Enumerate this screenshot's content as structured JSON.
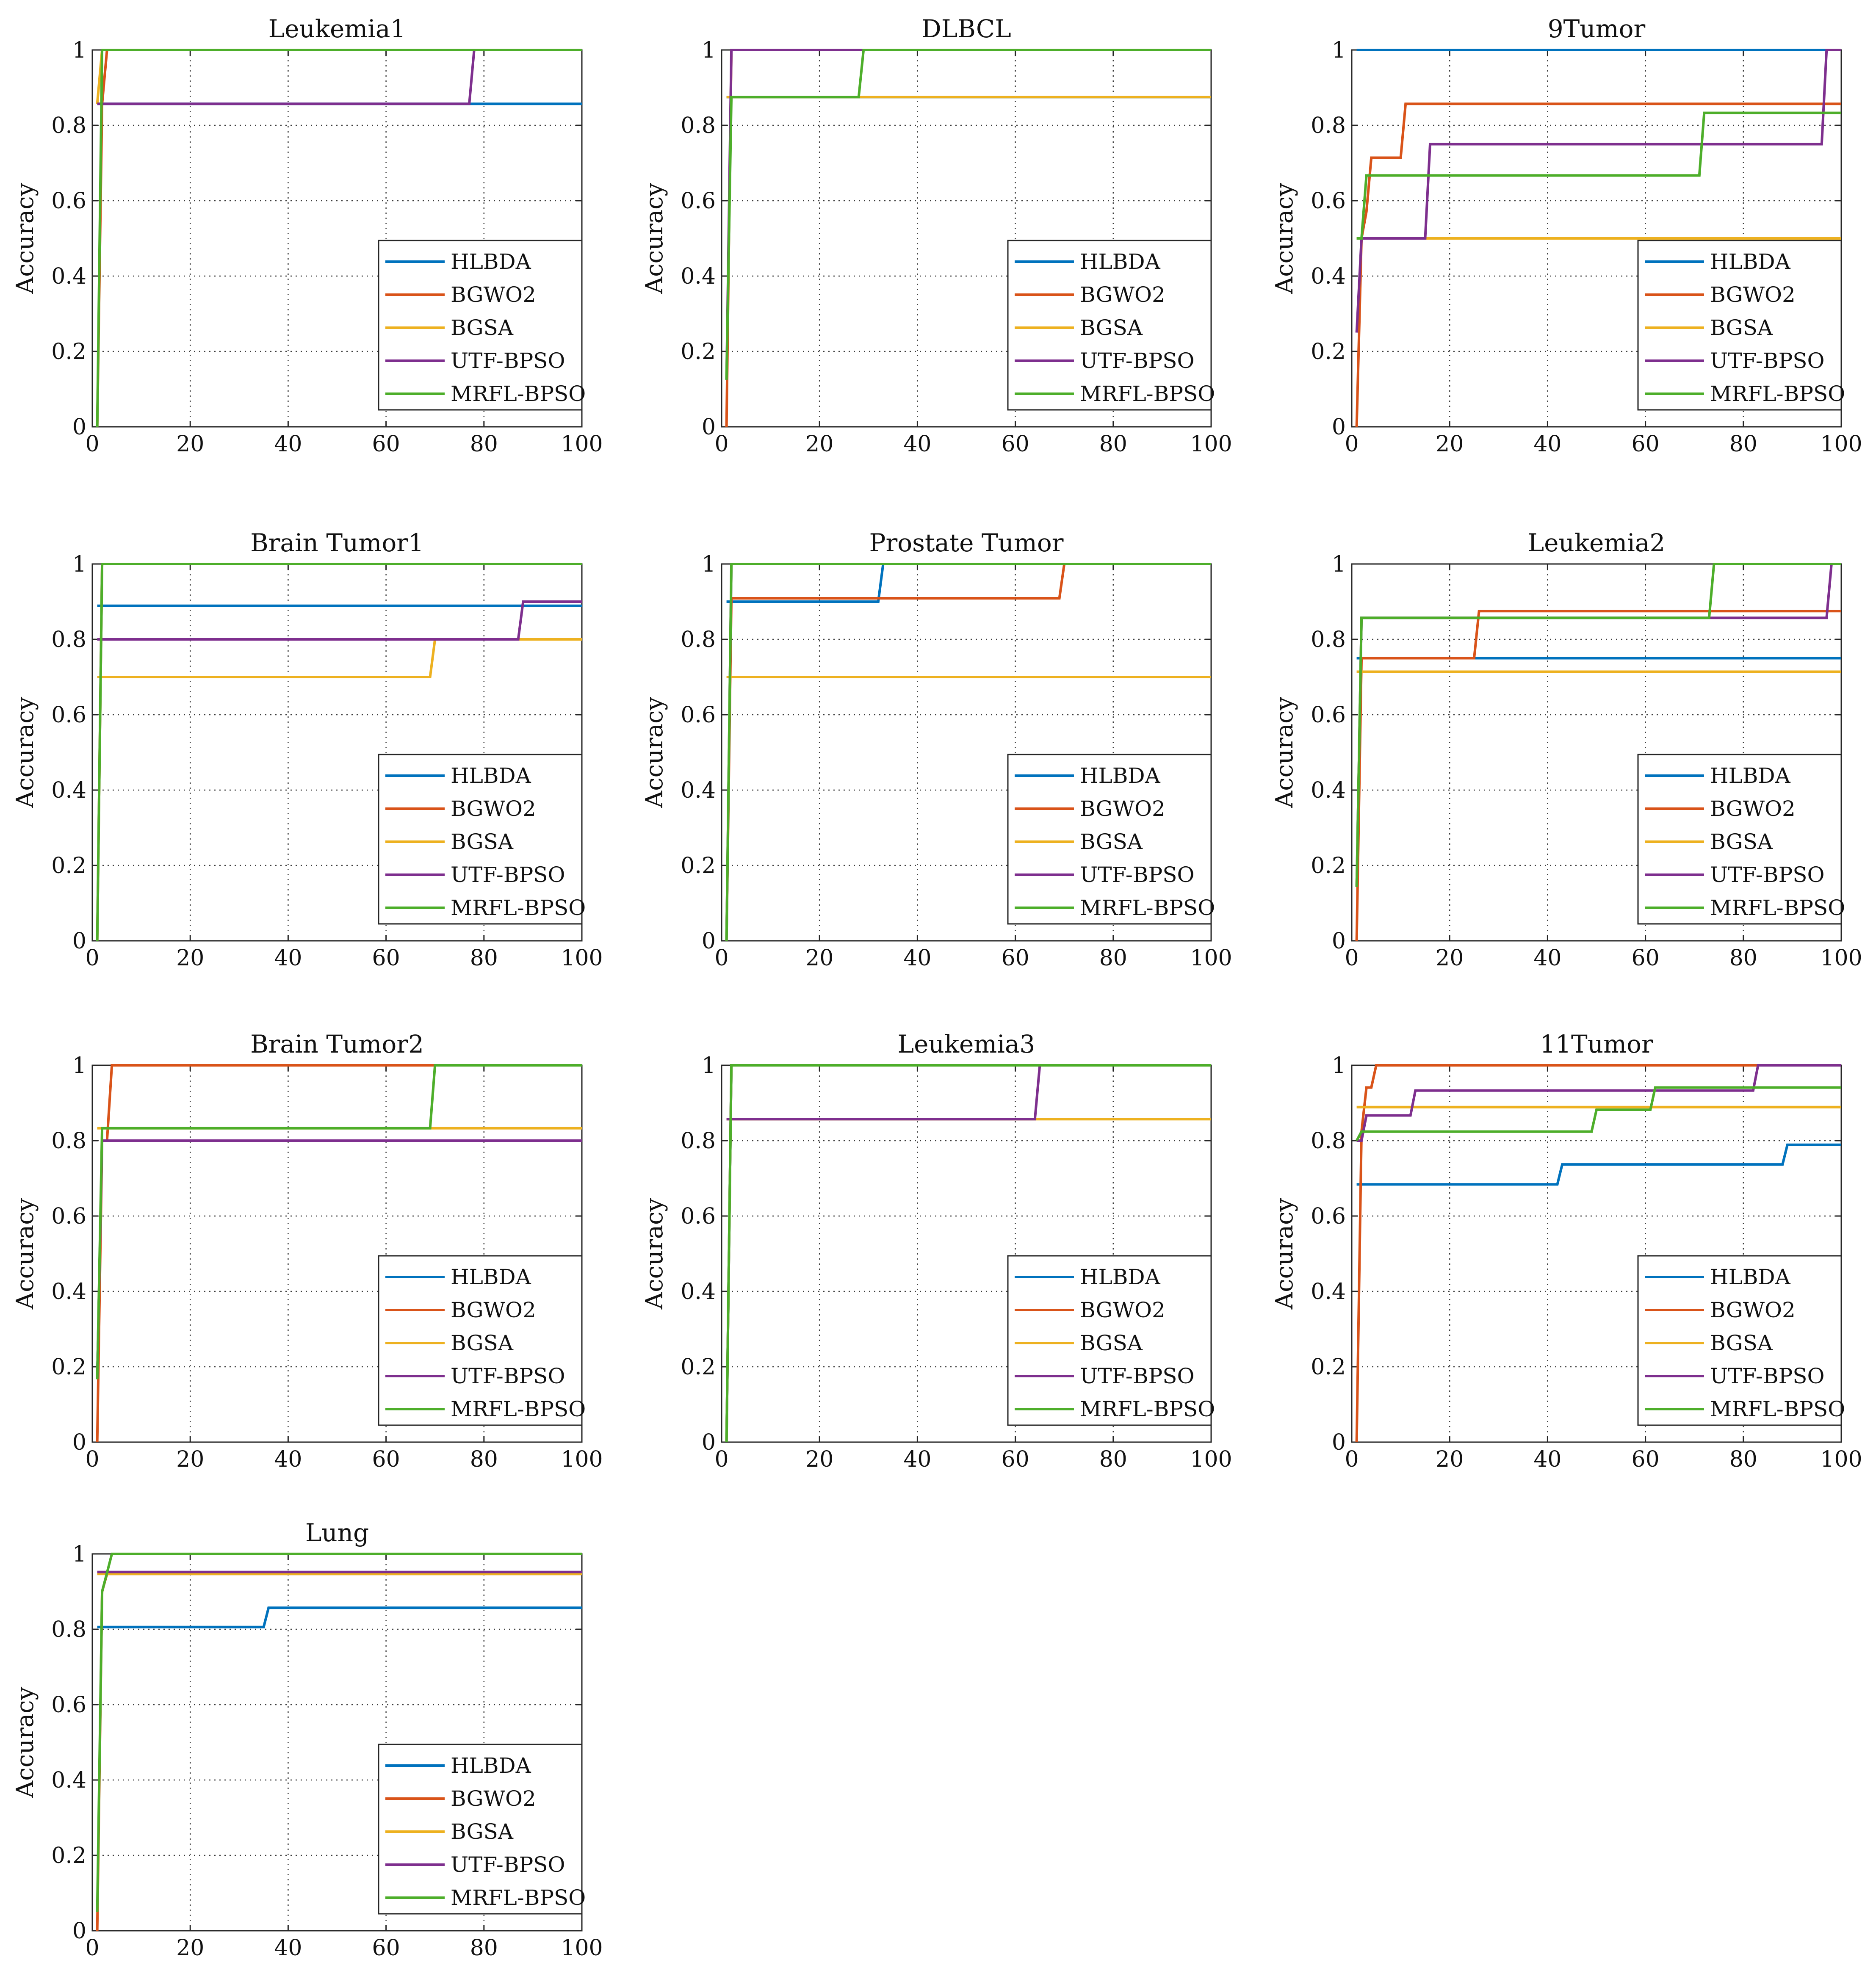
{
  "colors": {
    "HLBDA": "#0072BD",
    "BGWO2": "#D95319",
    "BGSA": "#EDB120",
    "UTF-BPSO": "#7E2F8E",
    "MRFL-BPSO": "#4DAE2A"
  },
  "chart_data": [
    {
      "type": "line",
      "title": "Leukemia1",
      "xlabel": "",
      "ylabel": "Accuracy",
      "xlim": [
        0,
        100
      ],
      "ylim": [
        0,
        1
      ],
      "xticks": [
        "0",
        "20",
        "40",
        "60",
        "80",
        "100"
      ],
      "yticks": [
        "0",
        "0.2",
        "0.4",
        "0.6",
        "0.8",
        "1"
      ],
      "grid": true,
      "legend_position": "bottom-right",
      "series": [
        {
          "name": "HLBDA",
          "x": [
            1,
            2,
            100
          ],
          "y": [
            0.857,
            0.857,
            0.857
          ]
        },
        {
          "name": "BGWO2",
          "x": [
            1,
            2,
            3,
            100
          ],
          "y": [
            0,
            0.857,
            1,
            1
          ]
        },
        {
          "name": "BGSA",
          "x": [
            1,
            2,
            100
          ],
          "y": [
            0.857,
            1,
            1
          ]
        },
        {
          "name": "UTF-BPSO",
          "x": [
            1,
            2,
            77,
            78,
            100
          ],
          "y": [
            0.857,
            0.857,
            0.857,
            1,
            1
          ]
        },
        {
          "name": "MRFL-BPSO",
          "x": [
            1,
            2,
            100
          ],
          "y": [
            0,
            1,
            1
          ]
        }
      ]
    },
    {
      "type": "line",
      "title": "DLBCL",
      "xlabel": "",
      "ylabel": "Accuracy",
      "xlim": [
        0,
        100
      ],
      "ylim": [
        0,
        1
      ],
      "xticks": [
        "0",
        "20",
        "40",
        "60",
        "80",
        "100"
      ],
      "yticks": [
        "0",
        "0.2",
        "0.4",
        "0.6",
        "0.8",
        "1"
      ],
      "grid": true,
      "legend_position": "bottom-right",
      "series": [
        {
          "name": "HLBDA",
          "x": [
            1,
            2,
            100
          ],
          "y": [
            0.875,
            0.875,
            0.875
          ]
        },
        {
          "name": "BGWO2",
          "x": [
            1,
            2,
            100
          ],
          "y": [
            0,
            1,
            1
          ]
        },
        {
          "name": "BGSA",
          "x": [
            1,
            2,
            100
          ],
          "y": [
            0.875,
            0.875,
            0.875
          ]
        },
        {
          "name": "UTF-BPSO",
          "x": [
            1,
            2,
            100
          ],
          "y": [
            0.125,
            1,
            1
          ]
        },
        {
          "name": "MRFL-BPSO",
          "x": [
            1,
            2,
            28,
            29,
            100
          ],
          "y": [
            0.125,
            0.875,
            0.875,
            1,
            1
          ]
        }
      ]
    },
    {
      "type": "line",
      "title": "9Tumor",
      "xlabel": "",
      "ylabel": "Accuracy",
      "xlim": [
        0,
        100
      ],
      "ylim": [
        0,
        1
      ],
      "xticks": [
        "0",
        "20",
        "40",
        "60",
        "80",
        "100"
      ],
      "yticks": [
        "0",
        "0.2",
        "0.4",
        "0.6",
        "0.8",
        "1"
      ],
      "grid": true,
      "legend_position": "bottom-right",
      "series": [
        {
          "name": "HLBDA",
          "x": [
            1,
            100
          ],
          "y": [
            1,
            1
          ]
        },
        {
          "name": "BGWO2",
          "x": [
            1,
            2,
            3,
            4,
            10,
            11,
            100
          ],
          "y": [
            0,
            0.5,
            0.571,
            0.714,
            0.714,
            0.857,
            0.857
          ]
        },
        {
          "name": "BGSA",
          "x": [
            1,
            2,
            100
          ],
          "y": [
            0.5,
            0.5,
            0.5
          ]
        },
        {
          "name": "UTF-BPSO",
          "x": [
            1,
            2,
            15,
            16,
            96,
            97,
            100
          ],
          "y": [
            0.25,
            0.5,
            0.5,
            0.75,
            0.75,
            1,
            1
          ]
        },
        {
          "name": "MRFL-BPSO",
          "x": [
            1,
            2,
            3,
            71,
            72,
            100
          ],
          "y": [
            0.5,
            0.5,
            0.667,
            0.667,
            0.833,
            0.833
          ]
        }
      ]
    },
    {
      "type": "line",
      "title": "Brain Tumor1",
      "xlabel": "",
      "ylabel": "Accuracy",
      "xlim": [
        0,
        100
      ],
      "ylim": [
        0,
        1
      ],
      "xticks": [
        "0",
        "20",
        "40",
        "60",
        "80",
        "100"
      ],
      "yticks": [
        "0",
        "0.2",
        "0.4",
        "0.6",
        "0.8",
        "1"
      ],
      "grid": true,
      "legend_position": "bottom-right",
      "series": [
        {
          "name": "HLBDA",
          "x": [
            1,
            100
          ],
          "y": [
            0.889,
            0.889
          ]
        },
        {
          "name": "BGWO2",
          "x": [
            1,
            2,
            100
          ],
          "y": [
            0,
            1,
            1
          ]
        },
        {
          "name": "BGSA",
          "x": [
            1,
            69,
            70,
            100
          ],
          "y": [
            0.7,
            0.7,
            0.8,
            0.8
          ]
        },
        {
          "name": "UTF-BPSO",
          "x": [
            1,
            87,
            88,
            100
          ],
          "y": [
            0.8,
            0.8,
            0.9,
            0.9
          ]
        },
        {
          "name": "MRFL-BPSO",
          "x": [
            1,
            2,
            100
          ],
          "y": [
            0,
            1,
            1
          ]
        }
      ]
    },
    {
      "type": "line",
      "title": "Prostate Tumor",
      "xlabel": "",
      "ylabel": "Accuracy",
      "xlim": [
        0,
        100
      ],
      "ylim": [
        0,
        1
      ],
      "xticks": [
        "0",
        "20",
        "40",
        "60",
        "80",
        "100"
      ],
      "yticks": [
        "0",
        "0.2",
        "0.4",
        "0.6",
        "0.8",
        "1"
      ],
      "grid": true,
      "legend_position": "bottom-right",
      "series": [
        {
          "name": "HLBDA",
          "x": [
            1,
            32,
            33,
            100
          ],
          "y": [
            0.9,
            0.9,
            1,
            1
          ]
        },
        {
          "name": "BGWO2",
          "x": [
            1,
            2,
            69,
            70,
            100
          ],
          "y": [
            0,
            0.909,
            0.909,
            1,
            1
          ]
        },
        {
          "name": "BGSA",
          "x": [
            1,
            100
          ],
          "y": [
            0.7,
            0.7
          ]
        },
        {
          "name": "UTF-BPSO",
          "x": [
            1,
            2,
            100
          ],
          "y": [
            0,
            1,
            1
          ]
        },
        {
          "name": "MRFL-BPSO",
          "x": [
            1,
            2,
            100
          ],
          "y": [
            0,
            1,
            1
          ]
        }
      ]
    },
    {
      "type": "line",
      "title": "Leukemia2",
      "xlabel": "",
      "ylabel": "Accuracy",
      "xlim": [
        0,
        100
      ],
      "ylim": [
        0,
        1
      ],
      "xticks": [
        "0",
        "20",
        "40",
        "60",
        "80",
        "100"
      ],
      "yticks": [
        "0",
        "0.2",
        "0.4",
        "0.6",
        "0.8",
        "1"
      ],
      "grid": true,
      "legend_position": "bottom-right",
      "series": [
        {
          "name": "HLBDA",
          "x": [
            1,
            100
          ],
          "y": [
            0.75,
            0.75
          ]
        },
        {
          "name": "BGWO2",
          "x": [
            1,
            2,
            25,
            26,
            100
          ],
          "y": [
            0,
            0.75,
            0.75,
            0.875,
            0.875
          ]
        },
        {
          "name": "BGSA",
          "x": [
            1,
            100
          ],
          "y": [
            0.714,
            0.714
          ]
        },
        {
          "name": "UTF-BPSO",
          "x": [
            1,
            2,
            97,
            98,
            100
          ],
          "y": [
            0.143,
            0.857,
            0.857,
            1,
            1
          ]
        },
        {
          "name": "MRFL-BPSO",
          "x": [
            1,
            2,
            73,
            74,
            100
          ],
          "y": [
            0.143,
            0.857,
            0.857,
            1,
            1
          ]
        }
      ]
    },
    {
      "type": "line",
      "title": "Brain Tumor2",
      "xlabel": "",
      "ylabel": "Accuracy",
      "xlim": [
        0,
        100
      ],
      "ylim": [
        0,
        1
      ],
      "xticks": [
        "0",
        "20",
        "40",
        "60",
        "80",
        "100"
      ],
      "yticks": [
        "0",
        "0.2",
        "0.4",
        "0.6",
        "0.8",
        "1"
      ],
      "grid": true,
      "legend_position": "bottom-right",
      "series": [
        {
          "name": "HLBDA",
          "x": [
            1,
            2,
            100
          ],
          "y": [
            0.167,
            0.8,
            0.8
          ]
        },
        {
          "name": "BGWO2",
          "x": [
            1,
            2,
            3,
            4,
            100
          ],
          "y": [
            0,
            0.8,
            0.8,
            1,
            1
          ]
        },
        {
          "name": "BGSA",
          "x": [
            1,
            100
          ],
          "y": [
            0.833,
            0.833
          ]
        },
        {
          "name": "UTF-BPSO",
          "x": [
            1,
            2,
            100
          ],
          "y": [
            0.167,
            0.8,
            0.8
          ]
        },
        {
          "name": "MRFL-BPSO",
          "x": [
            1,
            2,
            69,
            70,
            100
          ],
          "y": [
            0.167,
            0.833,
            0.833,
            1,
            1
          ]
        }
      ]
    },
    {
      "type": "line",
      "title": "Leukemia3",
      "xlabel": "",
      "ylabel": "Accuracy",
      "xlim": [
        0,
        100
      ],
      "ylim": [
        0,
        1
      ],
      "xticks": [
        "0",
        "20",
        "40",
        "60",
        "80",
        "100"
      ],
      "yticks": [
        "0",
        "0.2",
        "0.4",
        "0.6",
        "0.8",
        "1"
      ],
      "grid": true,
      "legend_position": "bottom-right",
      "series": [
        {
          "name": "HLBDA",
          "x": [
            1,
            2,
            100
          ],
          "y": [
            0,
            1,
            1
          ]
        },
        {
          "name": "BGWO2",
          "x": [
            1,
            2,
            100
          ],
          "y": [
            0,
            1,
            1
          ]
        },
        {
          "name": "BGSA",
          "x": [
            1,
            100
          ],
          "y": [
            0.857,
            0.857
          ]
        },
        {
          "name": "UTF-BPSO",
          "x": [
            1,
            64,
            65,
            100
          ],
          "y": [
            0.857,
            0.857,
            1,
            1
          ]
        },
        {
          "name": "MRFL-BPSO",
          "x": [
            1,
            2,
            100
          ],
          "y": [
            0,
            1,
            1
          ]
        }
      ]
    },
    {
      "type": "line",
      "title": "11Tumor",
      "xlabel": "",
      "ylabel": "Accuracy",
      "xlim": [
        0,
        100
      ],
      "ylim": [
        0,
        1
      ],
      "xticks": [
        "0",
        "20",
        "40",
        "60",
        "80",
        "100"
      ],
      "yticks": [
        "0",
        "0.2",
        "0.4",
        "0.6",
        "0.8",
        "1"
      ],
      "grid": true,
      "legend_position": "bottom-right",
      "series": [
        {
          "name": "HLBDA",
          "x": [
            1,
            42,
            43,
            88,
            89,
            100
          ],
          "y": [
            0.684,
            0.684,
            0.737,
            0.737,
            0.789,
            0.789
          ]
        },
        {
          "name": "BGWO2",
          "x": [
            1,
            2,
            3,
            4,
            5,
            100
          ],
          "y": [
            0,
            0.824,
            0.941,
            0.941,
            1,
            1
          ]
        },
        {
          "name": "BGSA",
          "x": [
            1,
            100
          ],
          "y": [
            0.889,
            0.889
          ]
        },
        {
          "name": "UTF-BPSO",
          "x": [
            1,
            2,
            3,
            12,
            13,
            82,
            83,
            100
          ],
          "y": [
            0.8,
            0.8,
            0.867,
            0.867,
            0.933,
            0.933,
            1,
            1
          ]
        },
        {
          "name": "MRFL-BPSO",
          "x": [
            1,
            2,
            49,
            50,
            61,
            62,
            100
          ],
          "y": [
            0.8,
            0.824,
            0.824,
            0.882,
            0.882,
            0.941,
            0.941
          ]
        }
      ]
    },
    {
      "type": "line",
      "title": "Lung",
      "xlabel": "",
      "ylabel": "Accuracy",
      "xlim": [
        0,
        100
      ],
      "ylim": [
        0,
        1
      ],
      "xticks": [
        "0",
        "20",
        "40",
        "60",
        "80",
        "100"
      ],
      "yticks": [
        "0",
        "0.2",
        "0.4",
        "0.6",
        "0.8",
        "1"
      ],
      "grid": true,
      "legend_position": "bottom-right",
      "series": [
        {
          "name": "HLBDA",
          "x": [
            1,
            35,
            36,
            100
          ],
          "y": [
            0.806,
            0.806,
            0.857,
            0.857
          ]
        },
        {
          "name": "BGWO2",
          "x": [
            1,
            2,
            3,
            100
          ],
          "y": [
            0,
            0.9,
            0.947,
            0.947
          ]
        },
        {
          "name": "BGSA",
          "x": [
            1,
            2,
            100
          ],
          "y": [
            0.947,
            0.947,
            0.947
          ]
        },
        {
          "name": "UTF-BPSO",
          "x": [
            1,
            100
          ],
          "y": [
            0.952,
            0.952
          ]
        },
        {
          "name": "MRFL-BPSO",
          "x": [
            1,
            2,
            3,
            4,
            100
          ],
          "y": [
            0.05,
            0.9,
            0.95,
            1,
            1
          ]
        }
      ]
    }
  ]
}
